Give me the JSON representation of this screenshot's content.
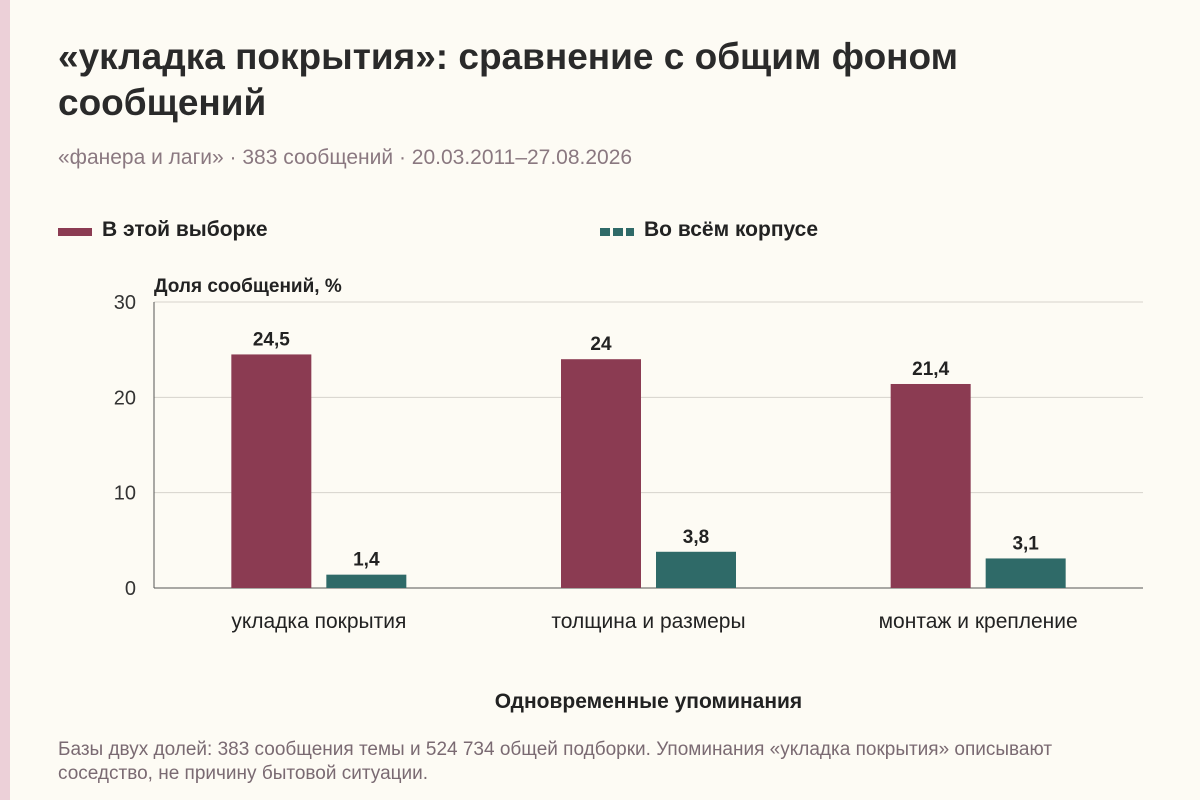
{
  "header": {
    "title": "«укладка покрытия»: сравнение с общим фоном сообщений",
    "subtitle": "«фанера и лаги» · 383 сообщений · 20.03.2011–27.08.2026"
  },
  "colors": {
    "background": "#fdfbf4",
    "series_sample": "#8b3b52",
    "series_corpus": "#2f6a68",
    "accent_strip": "#ecd0d8"
  },
  "chart_data": {
    "type": "bar",
    "categories": [
      "укладка покрытия",
      "толщина и размеры",
      "монтаж и крепление"
    ],
    "series": [
      {
        "name": "В этой выборке",
        "values": [
          24.5,
          24,
          21.4
        ],
        "labels": [
          "24,5",
          "24",
          "21,4"
        ],
        "color": "#8b3b52"
      },
      {
        "name": "Во всём корпусе",
        "values": [
          1.4,
          3.8,
          3.1
        ],
        "labels": [
          "1,4",
          "3,8",
          "3,1"
        ],
        "color": "#2f6a68"
      }
    ],
    "ylabel": "Доля сообщений, %",
    "xlabel": "Одновременные упоминания",
    "ylim": [
      0,
      30
    ],
    "yticks": [
      0,
      10,
      20,
      30
    ],
    "grid": true,
    "legend": "top"
  },
  "footer": {
    "note": "Базы двух долей: 383 сообщения темы и 524 734 общей подборки. Упоминания «укладка покрытия» описывают соседство, не причину бытовой ситуации."
  }
}
